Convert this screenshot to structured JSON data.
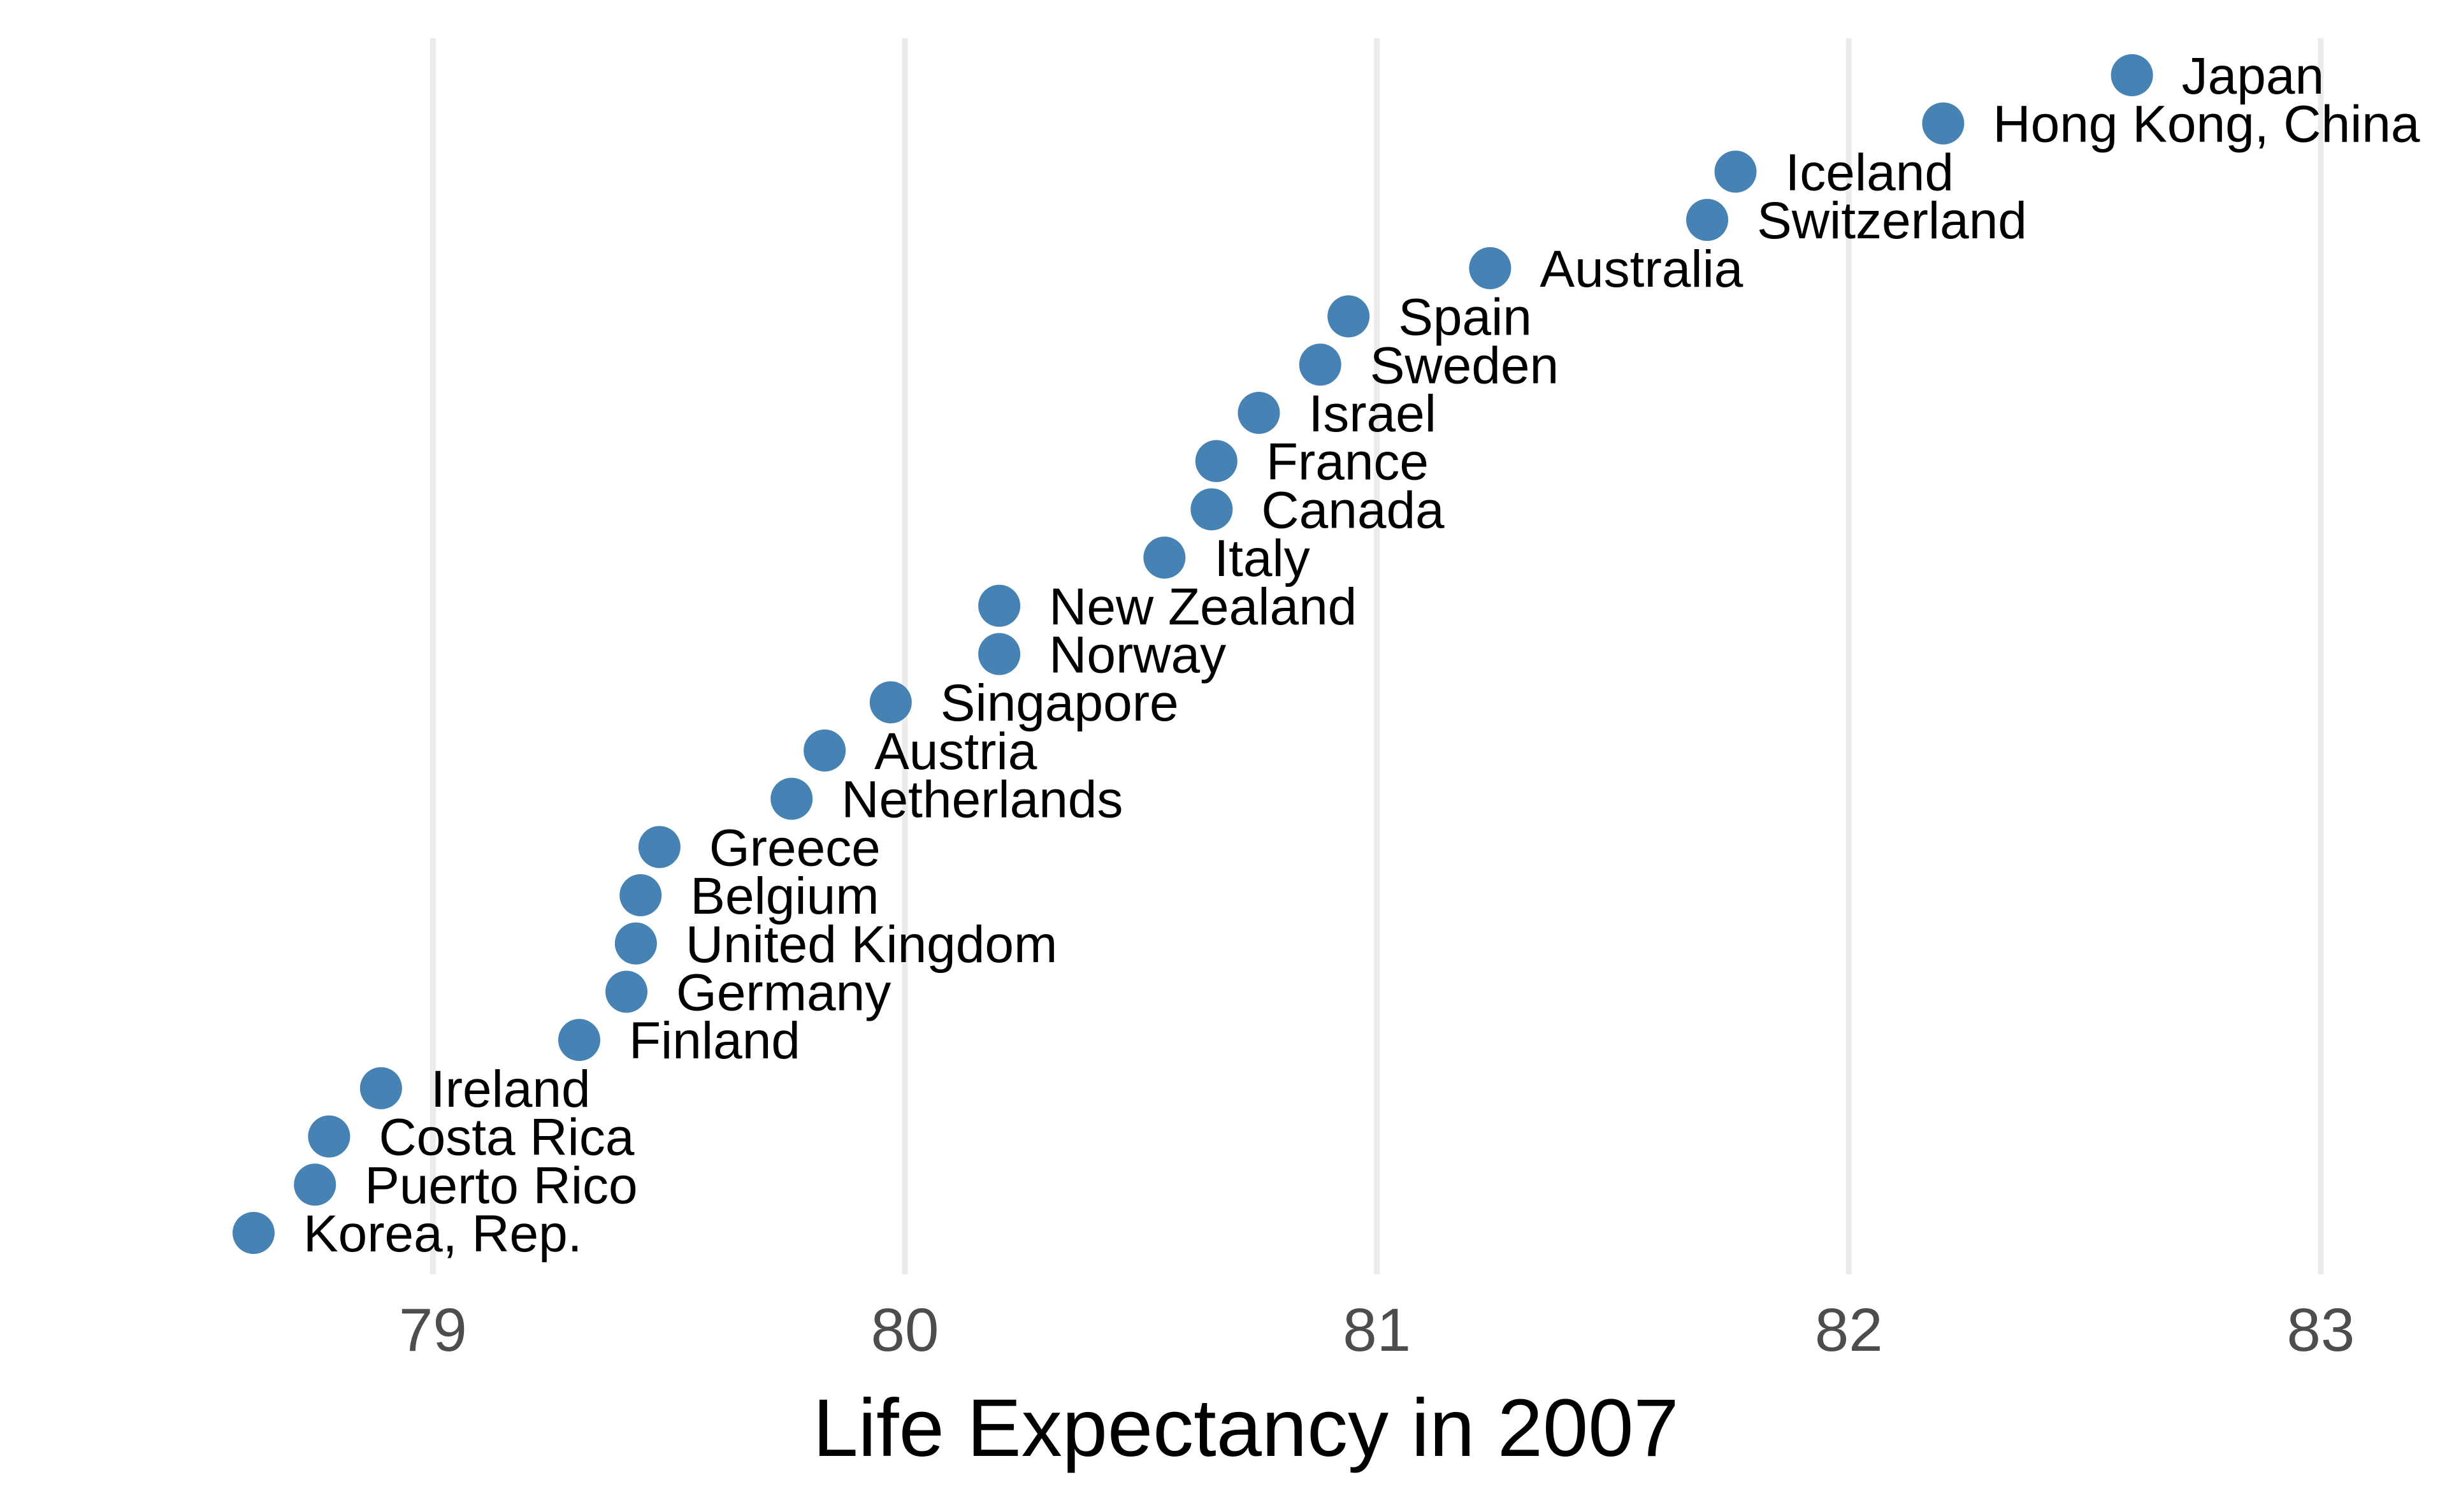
{
  "chart_data": {
    "type": "scatter",
    "title": "",
    "xlabel": "Life Expectancy in 2007",
    "ylabel": "",
    "xlim": [
      78.4,
      83.2
    ],
    "xticks": [
      "79",
      "80",
      "81",
      "82",
      "83"
    ],
    "grid": "vertical major gridlines",
    "legend": "none",
    "point_color": "#4682b4",
    "points": [
      {
        "label": "Japan",
        "x": 82.6
      },
      {
        "label": "Hong Kong, China",
        "x": 82.2
      },
      {
        "label": "Iceland",
        "x": 81.76
      },
      {
        "label": "Switzerland",
        "x": 81.7
      },
      {
        "label": "Australia",
        "x": 81.24
      },
      {
        "label": "Spain",
        "x": 80.94
      },
      {
        "label": "Sweden",
        "x": 80.88
      },
      {
        "label": "Israel",
        "x": 80.75
      },
      {
        "label": "France",
        "x": 80.66
      },
      {
        "label": "Canada",
        "x": 80.65
      },
      {
        "label": "Italy",
        "x": 80.55
      },
      {
        "label": "New Zealand",
        "x": 80.2
      },
      {
        "label": "Norway",
        "x": 80.2
      },
      {
        "label": "Singapore",
        "x": 79.97
      },
      {
        "label": "Austria",
        "x": 79.83
      },
      {
        "label": "Netherlands",
        "x": 79.76
      },
      {
        "label": "Greece",
        "x": 79.48
      },
      {
        "label": "Belgium",
        "x": 79.44
      },
      {
        "label": "United Kingdom",
        "x": 79.43
      },
      {
        "label": "Germany",
        "x": 79.41
      },
      {
        "label": "Finland",
        "x": 79.31
      },
      {
        "label": "Ireland",
        "x": 78.89
      },
      {
        "label": "Costa Rica",
        "x": 78.78
      },
      {
        "label": "Puerto Rico",
        "x": 78.75
      },
      {
        "label": "Korea, Rep.",
        "x": 78.62
      }
    ]
  }
}
